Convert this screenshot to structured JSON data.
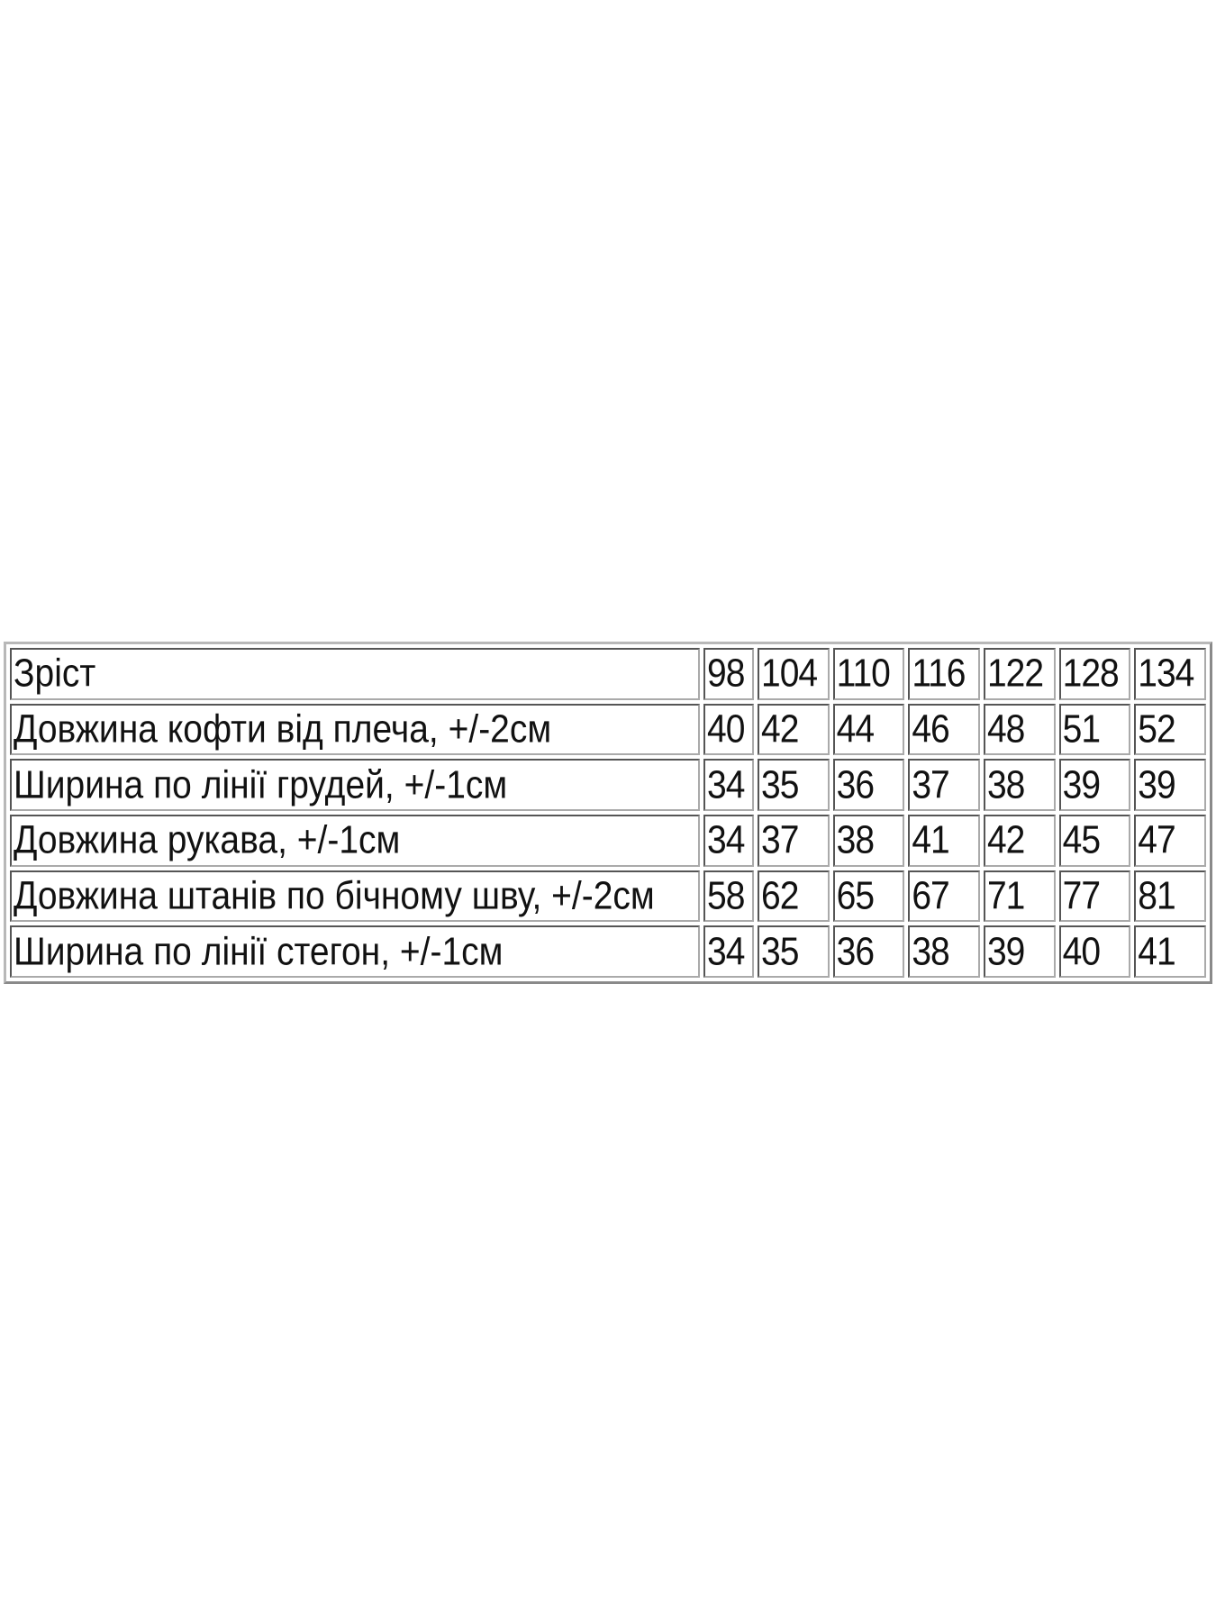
{
  "table": {
    "header": {
      "label": "Зріст",
      "sizes": [
        "98",
        "104",
        "110",
        "116",
        "122",
        "128",
        "134"
      ]
    },
    "rows": [
      {
        "label": "Довжина кофти від плеча, +/-2см",
        "values": [
          "40",
          "42",
          "44",
          "46",
          "48",
          "51",
          "52"
        ]
      },
      {
        "label": "Ширина по лінії грудей, +/-1см",
        "values": [
          "34",
          "35",
          "36",
          "37",
          "38",
          "39",
          "39"
        ]
      },
      {
        "label": "Довжина рукава, +/-1см",
        "values": [
          "34",
          "37",
          "38",
          "41",
          "42",
          "45",
          "47"
        ]
      },
      {
        "label": "Довжина штанів по бічному шву, +/-2см",
        "values": [
          "58",
          "62",
          "65",
          "67",
          "71",
          "77",
          "81"
        ]
      },
      {
        "label": "Ширина по лінії стегон, +/-1см",
        "values": [
          "34",
          "35",
          "36",
          "38",
          "39",
          "40",
          "41"
        ]
      }
    ]
  }
}
